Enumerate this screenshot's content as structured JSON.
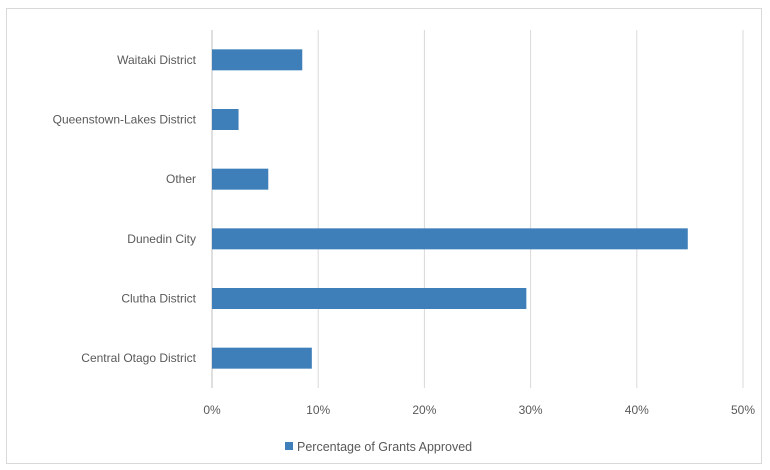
{
  "chart_data": {
    "type": "bar",
    "orientation": "horizontal",
    "categories": [
      "Waitaki District",
      "Queenstown-Lakes District",
      "Other",
      "Dunedin City",
      "Clutha District",
      "Central Otago District"
    ],
    "series": [
      {
        "name": "Percentage of Grants Approved",
        "values": [
          8.5,
          2.5,
          5.3,
          44.8,
          29.6,
          9.4
        ],
        "color": "#3f7fb9"
      }
    ],
    "xlim": [
      0,
      50
    ],
    "x_ticks": [
      0,
      10,
      20,
      30,
      40,
      50
    ],
    "x_tick_labels": [
      "0%",
      "10%",
      "20%",
      "30%",
      "40%",
      "50%"
    ],
    "x_grid": true,
    "legend_position": "bottom",
    "title": "",
    "xlabel": "",
    "ylabel": ""
  }
}
